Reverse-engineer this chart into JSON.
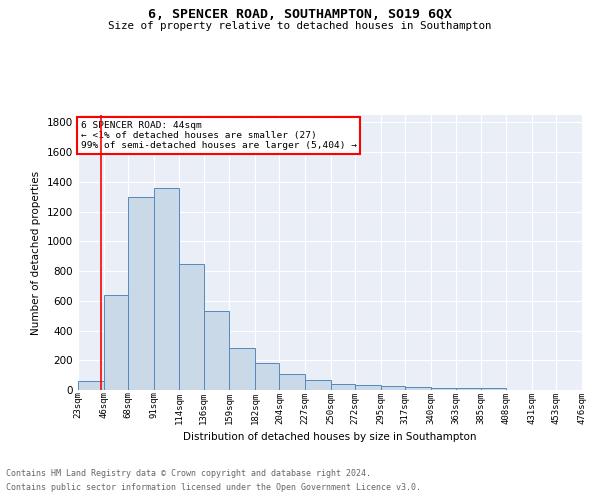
{
  "title": "6, SPENCER ROAD, SOUTHAMPTON, SO19 6QX",
  "subtitle": "Size of property relative to detached houses in Southampton",
  "xlabel": "Distribution of detached houses by size in Southampton",
  "ylabel": "Number of detached properties",
  "footnote1": "Contains HM Land Registry data © Crown copyright and database right 2024.",
  "footnote2": "Contains public sector information licensed under the Open Government Licence v3.0.",
  "annotation_title": "6 SPENCER ROAD: 44sqm",
  "annotation_line1": "← <1% of detached houses are smaller (27)",
  "annotation_line2": "99% of semi-detached houses are larger (5,404) →",
  "bar_color": "#c9d9e8",
  "bar_edge_color": "#5588bb",
  "bg_color": "#eaeff7",
  "grid_color": "#ffffff",
  "red_line_x": 44,
  "bin_edges": [
    23,
    46,
    68,
    91,
    114,
    136,
    159,
    182,
    204,
    227,
    250,
    272,
    295,
    317,
    340,
    363,
    385,
    408,
    431,
    453,
    476
  ],
  "bin_labels": [
    "23sqm",
    "46sqm",
    "68sqm",
    "91sqm",
    "114sqm",
    "136sqm",
    "159sqm",
    "182sqm",
    "204sqm",
    "227sqm",
    "250sqm",
    "272sqm",
    "295sqm",
    "317sqm",
    "340sqm",
    "363sqm",
    "385sqm",
    "408sqm",
    "431sqm",
    "453sqm",
    "476sqm"
  ],
  "values": [
    60,
    640,
    1300,
    1360,
    845,
    530,
    285,
    185,
    110,
    70,
    38,
    37,
    27,
    22,
    13,
    13,
    16,
    0,
    0,
    0,
    0
  ],
  "ylim": [
    0,
    1850
  ],
  "yticks": [
    0,
    200,
    400,
    600,
    800,
    1000,
    1200,
    1400,
    1600,
    1800
  ]
}
